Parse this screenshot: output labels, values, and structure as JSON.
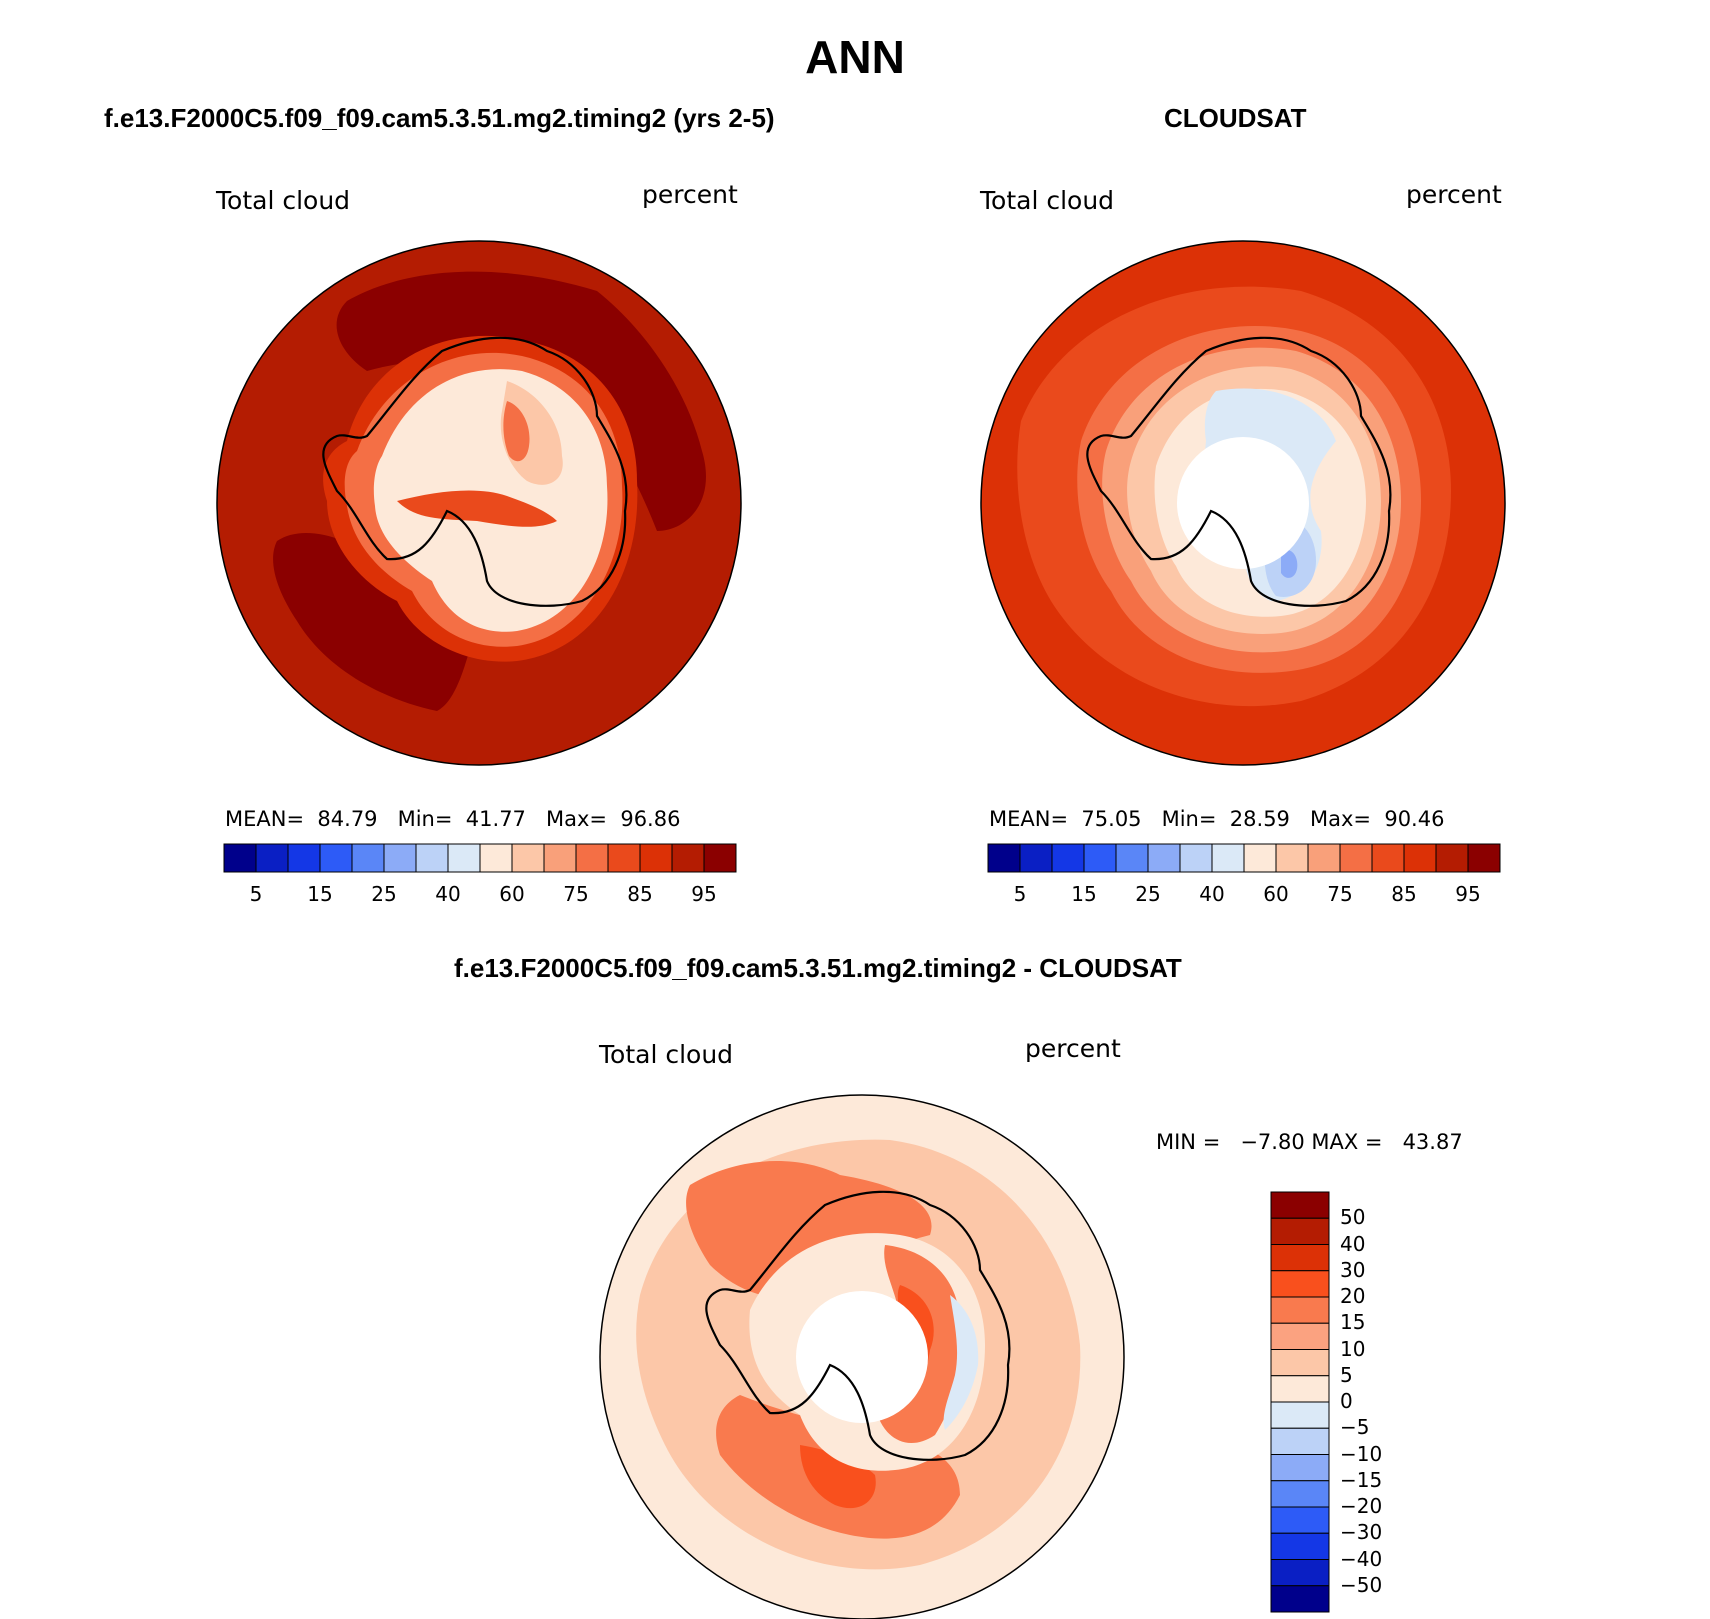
{
  "figure": {
    "title": "ANN"
  },
  "panels": [
    {
      "id": "model",
      "subtitle": "f.e13.F2000C5.f09_f09.cam5.3.51.mg2.timing2 (yrs 2-5)",
      "field": "Total cloud",
      "units": "percent",
      "stats": {
        "mean_label": "MEAN=",
        "mean": "84.79",
        "min_label": "Min=",
        "min": "41.77",
        "max_label": "Max=",
        "max": "96.86"
      },
      "polar_hole": false
    },
    {
      "id": "obs",
      "subtitle": "CLOUDSAT",
      "field": "Total cloud",
      "units": "percent",
      "stats": {
        "mean_label": "MEAN=",
        "mean": "75.05",
        "min_label": "Min=",
        "min": "28.59",
        "max_label": "Max=",
        "max": "90.46"
      },
      "polar_hole": true
    },
    {
      "id": "diff",
      "subtitle": "f.e13.F2000C5.f09_f09.cam5.3.51.mg2.timing2 - CLOUDSAT",
      "field": "Total cloud",
      "units": "percent",
      "stats": {
        "min_label": "MIN =",
        "min": "−7.80",
        "max_label": "MAX =",
        "max": "43.87"
      },
      "polar_hole": true
    }
  ],
  "colorbar_horizontal": {
    "colors": [
      "#00008b",
      "#0a1fc4",
      "#1437e6",
      "#2d5bf7",
      "#5a86f7",
      "#8cabf7",
      "#bcd2f7",
      "#dbe9f7",
      "#fde9d9",
      "#fcc7a8",
      "#f9a07a",
      "#f46f45",
      "#ea4a1c",
      "#dc3106",
      "#b41c02",
      "#8b0000"
    ],
    "labels": [
      "5",
      "15",
      "25",
      "40",
      "60",
      "75",
      "85",
      "95"
    ]
  },
  "colorbar_vertical": {
    "colors": [
      "#8b0000",
      "#b41c02",
      "#dc3106",
      "#f9501d",
      "#f97a4e",
      "#fba280",
      "#fcc7a8",
      "#fde9d9",
      "#dbe9f7",
      "#bcd2f7",
      "#8cabf7",
      "#5a86f7",
      "#2d5bf7",
      "#1437e6",
      "#0a1fc4",
      "#00008b"
    ],
    "labels": [
      "50",
      "40",
      "30",
      "20",
      "15",
      "10",
      "5",
      "0",
      "−5",
      "−10",
      "−15",
      "−20",
      "−30",
      "−40",
      "−50"
    ]
  }
}
